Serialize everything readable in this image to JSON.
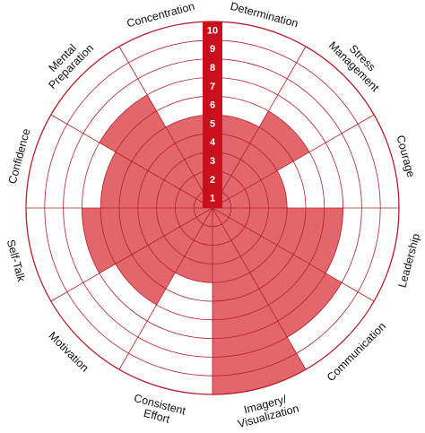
{
  "chart_data": {
    "type": "polar-area",
    "title": "",
    "categories": [
      "Determination",
      "Stress Management",
      "Courage",
      "Leadership",
      "Communication",
      "Imagery/ Visualization",
      "Consistent Effort",
      "Motivation",
      "Self-Talk",
      "Confidence",
      "Mental Preparation",
      "Concentration"
    ],
    "values": [
      5,
      6,
      4,
      7,
      8,
      10,
      4,
      6,
      7,
      6,
      7,
      5
    ],
    "rlim": [
      0,
      10
    ],
    "rings": [
      1,
      2,
      3,
      4,
      5,
      6,
      7,
      8,
      9,
      10
    ],
    "tick_labels": [
      "1",
      "2",
      "3",
      "4",
      "5",
      "6",
      "7",
      "8",
      "9",
      "10"
    ],
    "grid": true,
    "colors": {
      "fill": "#E2666B",
      "grid": "#B81C28",
      "scale_bar": "#C8101D",
      "tick_text": "#FFFFFF",
      "label_text": "#111111"
    }
  }
}
